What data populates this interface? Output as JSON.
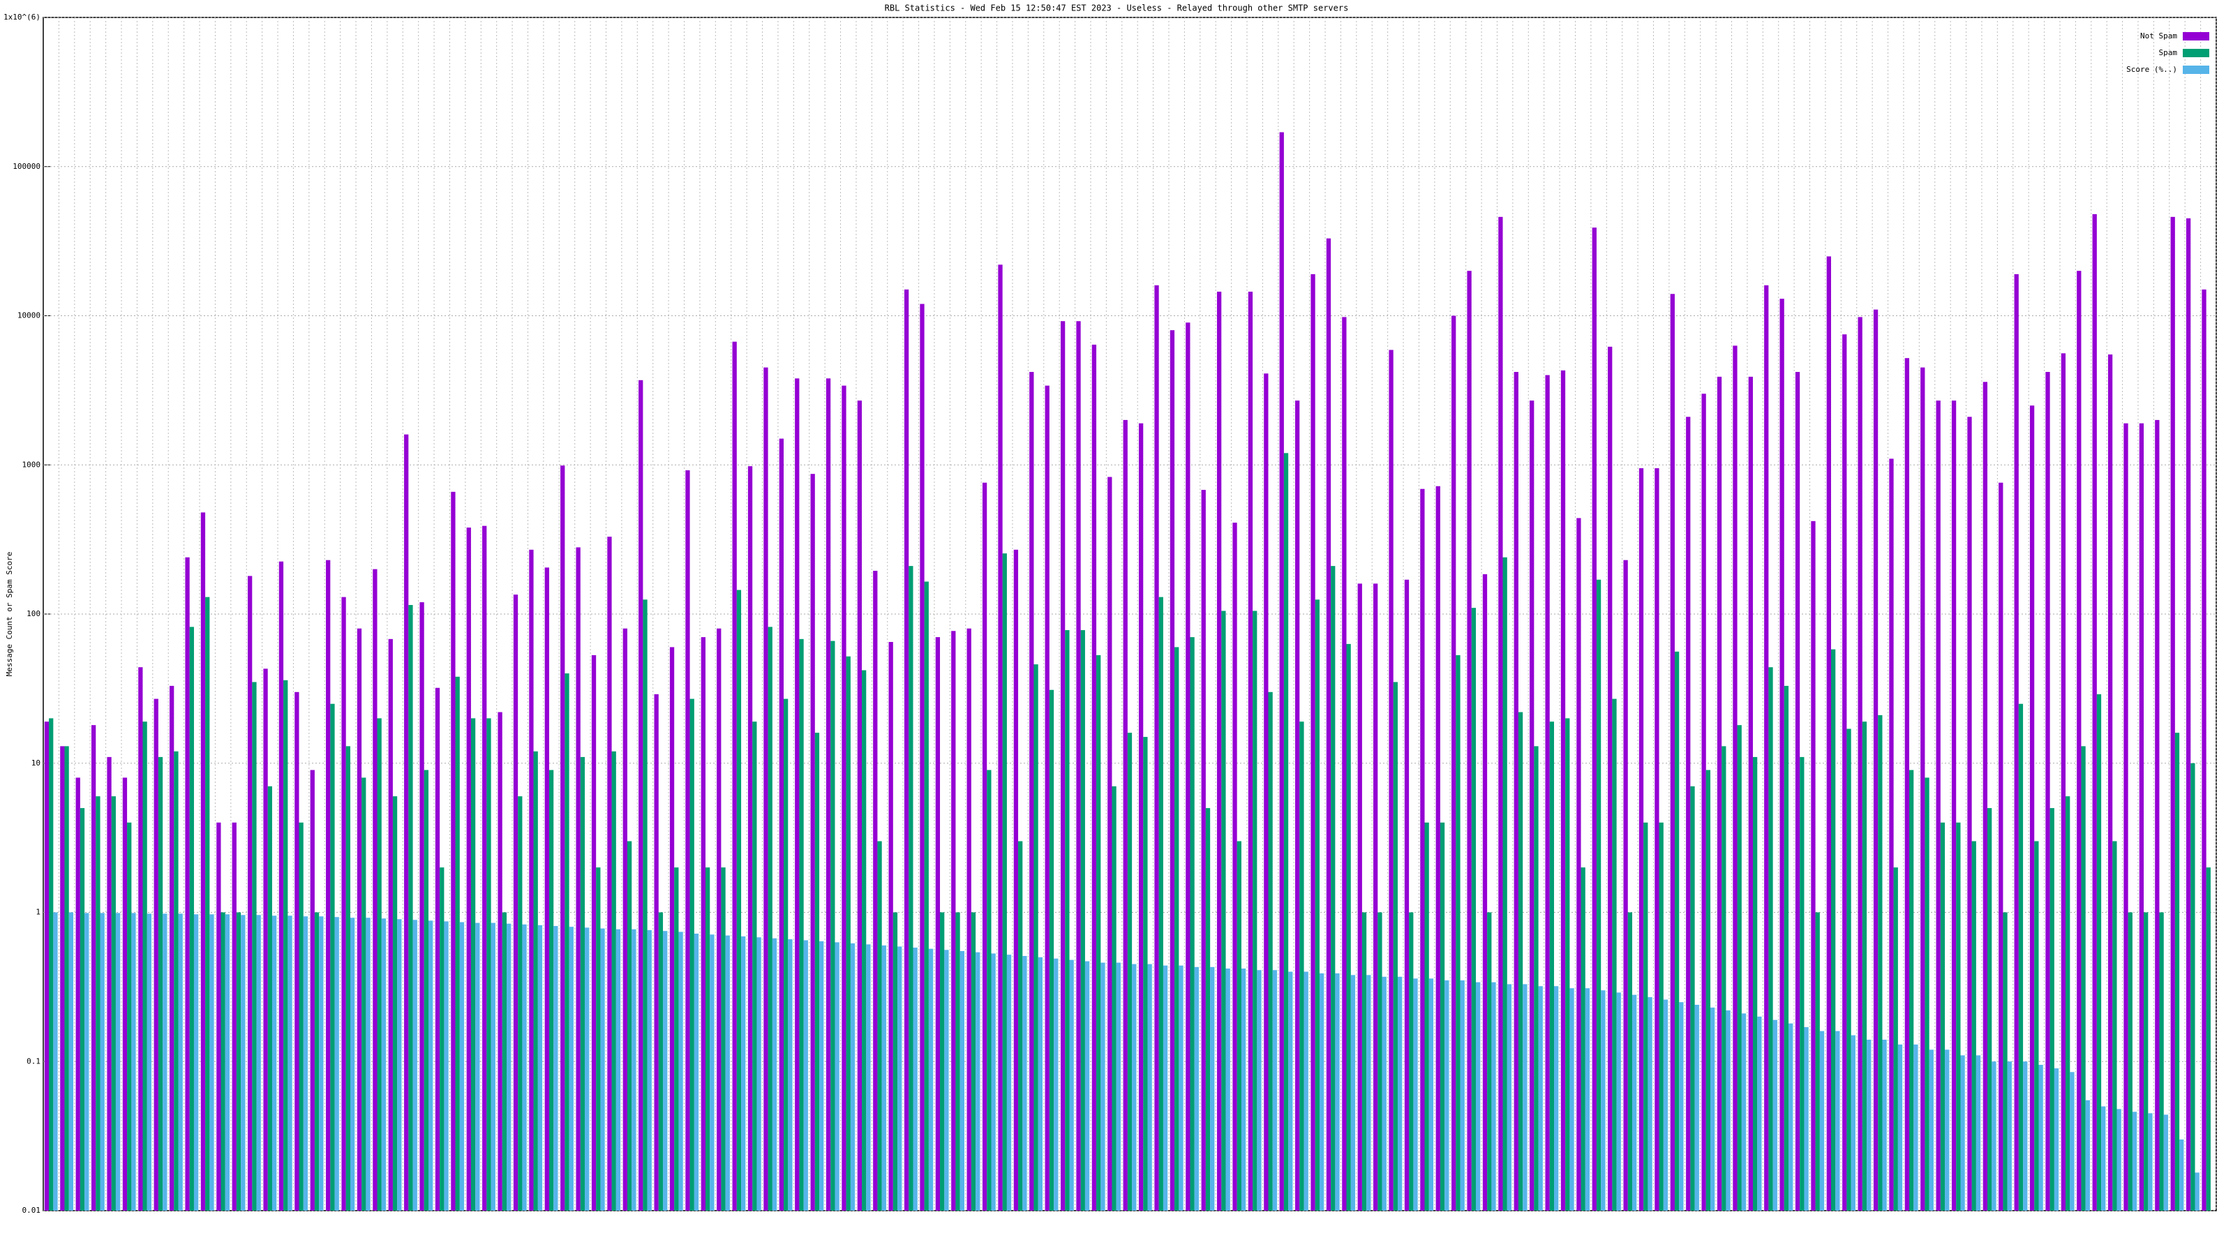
{
  "chart_data": {
    "type": "bar",
    "title": "RBL Statistics - Wed Feb 15 12:50:47 EST 2023 - Useless - Relayed through other SMTP servers",
    "y_label": "Message Count or Spam Score",
    "log_scale": true,
    "grid": true,
    "legend": "top-right",
    "ylim": [
      0.01,
      1000000
    ],
    "yticks": [
      0.01,
      0.1,
      1,
      10,
      100,
      1000,
      10000,
      100000,
      {
        "value": 1000000,
        "label": "1x10^(6)"
      }
    ],
    "categories": [
      null,
      null,
      null,
      null,
      null,
      null,
      null,
      null,
      null,
      null,
      null,
      null,
      null,
      null,
      null,
      null,
      null,
      null,
      null,
      null,
      null,
      null,
      null,
      null,
      null,
      null,
      null,
      null,
      null,
      null,
      null,
      null,
      null,
      null,
      null,
      null,
      null,
      null,
      null,
      null,
      null,
      null,
      null,
      null,
      null,
      null,
      null,
      null,
      null,
      null,
      null,
      null,
      null,
      null,
      null,
      null,
      null,
      null,
      null,
      null,
      null,
      null,
      null,
      null,
      null,
      null,
      null,
      null,
      null,
      null,
      null,
      null,
      null,
      null,
      null,
      null,
      null,
      null,
      null,
      null,
      null,
      null,
      null,
      null,
      null,
      null,
      null,
      null,
      null,
      null,
      null,
      null,
      null,
      null,
      null,
      null,
      null,
      null,
      null,
      null,
      null,
      null,
      null,
      null,
      null,
      null,
      null,
      null,
      null,
      null,
      null,
      null,
      null,
      null,
      null,
      null,
      null,
      null,
      null,
      null,
      null,
      null,
      null,
      null,
      null,
      null,
      null,
      null,
      null,
      null,
      null,
      null,
      null,
      null,
      null,
      null,
      null,
      null,
      null
    ],
    "series": [
      {
        "name": "Not Spam",
        "color": "#9400d3",
        "values": [
          19,
          13,
          8,
          18,
          11,
          8,
          44,
          27,
          33,
          240,
          480,
          4,
          4,
          180,
          43,
          225,
          30,
          9,
          230,
          130,
          80,
          200,
          68,
          1600,
          120,
          32,
          660,
          380,
          390,
          22,
          135,
          270,
          205,
          990,
          280,
          53,
          330,
          80,
          3700,
          29,
          60,
          920,
          70,
          80,
          6700,
          980,
          4500,
          1500,
          3800,
          870,
          3800,
          3400,
          2700,
          195,
          65,
          15000,
          12000,
          70,
          77,
          80,
          760,
          22000,
          270,
          4200,
          3400,
          9200,
          9200,
          6400,
          830,
          2000,
          1900,
          16000,
          8000,
          9000,
          680,
          14500,
          410,
          14500,
          4100,
          170000,
          2700,
          19000,
          33000,
          9800,
          160,
          160,
          5900,
          170,
          690,
          720,
          10000,
          20000,
          185,
          46000,
          4200,
          2700,
          4000,
          4300,
          440,
          39000,
          6200,
          230,
          950,
          950,
          14000,
          2100,
          3000,
          3900,
          6300,
          3900,
          16000,
          13000,
          4200,
          420,
          25000,
          7500,
          9800,
          11000,
          1100,
          5200,
          4500,
          2700,
          2700,
          2100,
          3600,
          760,
          19000,
          2500,
          4200,
          5600,
          20000,
          48000,
          5500,
          1900,
          1900,
          2000,
          46000,
          45000,
          15000
        ]
      },
      {
        "name": "Spam",
        "color": "#009e73",
        "values": [
          20,
          13,
          5,
          6,
          6,
          4,
          19,
          11,
          12,
          82,
          130,
          1,
          1,
          35,
          7,
          36,
          4,
          1,
          25,
          13,
          8,
          20,
          6,
          115,
          9,
          2,
          38,
          20,
          20,
          1,
          6,
          12,
          9,
          40,
          11,
          2,
          12,
          3,
          125,
          1,
          2,
          27,
          2,
          2,
          145,
          19,
          82,
          27,
          68,
          16,
          66,
          52,
          42,
          3,
          1,
          210,
          165,
          1,
          1,
          1,
          9,
          255,
          3,
          46,
          31,
          78,
          78,
          53,
          7,
          16,
          15,
          130,
          60,
          70,
          5,
          105,
          3,
          105,
          30,
          1200,
          19,
          125,
          210,
          63,
          1,
          1,
          35,
          1,
          4,
          4,
          53,
          110,
          1,
          240,
          22,
          13,
          19,
          20,
          2,
          170,
          27,
          1,
          4,
          4,
          56,
          7,
          9,
          13,
          18,
          11,
          44,
          33,
          11,
          1,
          58,
          17,
          19,
          21,
          2,
          9,
          8,
          4,
          4,
          3,
          5,
          1,
          25,
          3,
          5,
          6,
          13,
          29,
          3,
          1,
          1,
          1,
          16,
          10,
          2
        ]
      },
      {
        "name": "Score (%..)",
        "color": "#56b4e9",
        "values": [
          1,
          1,
          0.99,
          0.99,
          0.99,
          0.99,
          0.98,
          0.98,
          0.98,
          0.97,
          0.97,
          0.97,
          0.96,
          0.96,
          0.95,
          0.95,
          0.94,
          0.94,
          0.93,
          0.92,
          0.92,
          0.91,
          0.9,
          0.89,
          0.88,
          0.87,
          0.86,
          0.85,
          0.85,
          0.84,
          0.83,
          0.82,
          0.81,
          0.8,
          0.79,
          0.78,
          0.77,
          0.77,
          0.76,
          0.75,
          0.74,
          0.72,
          0.71,
          0.7,
          0.69,
          0.68,
          0.67,
          0.66,
          0.65,
          0.64,
          0.63,
          0.62,
          0.61,
          0.6,
          0.59,
          0.58,
          0.57,
          0.56,
          0.55,
          0.54,
          0.53,
          0.52,
          0.51,
          0.5,
          0.49,
          0.48,
          0.47,
          0.46,
          0.46,
          0.45,
          0.45,
          0.44,
          0.44,
          0.43,
          0.43,
          0.42,
          0.42,
          0.41,
          0.41,
          0.4,
          0.4,
          0.39,
          0.39,
          0.38,
          0.38,
          0.37,
          0.37,
          0.36,
          0.36,
          0.35,
          0.35,
          0.34,
          0.34,
          0.33,
          0.33,
          0.32,
          0.32,
          0.31,
          0.31,
          0.3,
          0.29,
          0.28,
          0.27,
          0.26,
          0.25,
          0.24,
          0.23,
          0.22,
          0.21,
          0.2,
          0.19,
          0.18,
          0.17,
          0.16,
          0.16,
          0.15,
          0.14,
          0.14,
          0.13,
          0.13,
          0.12,
          0.12,
          0.11,
          0.11,
          0.1,
          0.1,
          0.1,
          0.095,
          0.09,
          0.085,
          0.055,
          0.05,
          0.048,
          0.046,
          0.045,
          0.044,
          0.03,
          0.018,
          0.01
        ]
      }
    ]
  }
}
